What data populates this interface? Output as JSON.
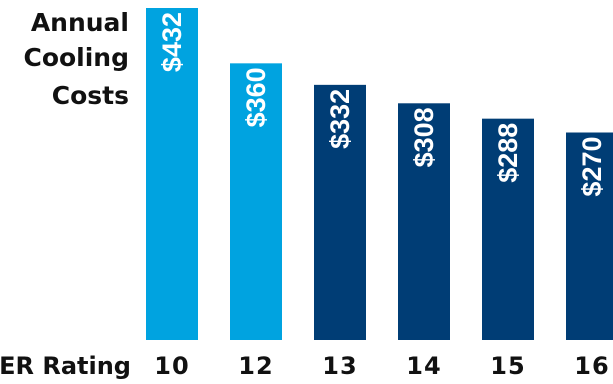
{
  "chart_data": {
    "type": "bar",
    "title_lines": [
      "Annual",
      "Cooling",
      "Costs"
    ],
    "xlabel": "SEER Rating",
    "categories": [
      "10",
      "12",
      "13",
      "14",
      "15",
      "16"
    ],
    "values": [
      432,
      360,
      332,
      308,
      288,
      270
    ],
    "value_labels": [
      "$432",
      "$360",
      "$332",
      "$308",
      "$288",
      "$270"
    ],
    "ylim": [
      0,
      432
    ],
    "colors": {
      "light": "#00a3e0",
      "dark": "#003d75"
    },
    "bar_colors": [
      "light",
      "light",
      "dark",
      "dark",
      "dark",
      "dark"
    ],
    "grid": false,
    "legend": "none"
  }
}
